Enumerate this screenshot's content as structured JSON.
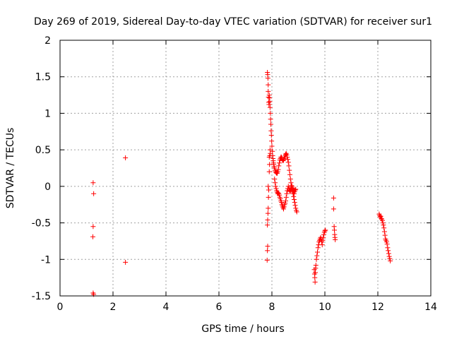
{
  "chart_data": {
    "type": "scatter",
    "title": "Day 269 of 2019, Sidereal Day-to-day VTEC variation (SDTVAR) for receiver sur1",
    "xlabel": "GPS time / hours",
    "ylabel": "SDTVAR / TECUs",
    "xlim": [
      0,
      14
    ],
    "ylim": [
      -1.5,
      2
    ],
    "xticks": [
      "0",
      "2",
      "4",
      "6",
      "8",
      "10",
      "12",
      "14"
    ],
    "yticks": [
      "-1.5",
      "-1",
      "-0.5",
      "0",
      "0.5",
      "1",
      "1.5",
      "2"
    ],
    "grid": true,
    "marker": "+",
    "color": "#ff0000",
    "series": [
      {
        "name": "sur1",
        "points": [
          [
            1.25,
            0.05
          ],
          [
            1.27,
            -0.1
          ],
          [
            1.25,
            -0.55
          ],
          [
            1.24,
            -0.69
          ],
          [
            1.25,
            -1.46
          ],
          [
            1.27,
            -1.48
          ],
          [
            2.47,
            0.39
          ],
          [
            2.47,
            -1.04
          ],
          [
            7.82,
            -1.01
          ],
          [
            7.83,
            -0.88
          ],
          [
            7.84,
            -0.82
          ],
          [
            7.83,
            -0.53
          ],
          [
            7.84,
            -0.46
          ],
          [
            7.85,
            -0.37
          ],
          [
            7.86,
            -0.3
          ],
          [
            7.87,
            -0.15
          ],
          [
            7.88,
            -0.05
          ],
          [
            7.86,
            0.0
          ],
          [
            7.83,
            1.56
          ],
          [
            7.84,
            1.53
          ],
          [
            7.85,
            1.48
          ],
          [
            7.86,
            1.39
          ],
          [
            7.86,
            1.3
          ],
          [
            7.87,
            1.22
          ],
          [
            7.88,
            1.15
          ],
          [
            7.89,
            1.12
          ],
          [
            7.9,
            1.25
          ],
          [
            7.91,
            1.21
          ],
          [
            7.92,
            1.16
          ],
          [
            7.93,
            1.08
          ],
          [
            7.94,
            1.0
          ],
          [
            7.95,
            0.92
          ],
          [
            7.96,
            0.85
          ],
          [
            7.97,
            0.76
          ],
          [
            7.98,
            0.7
          ],
          [
            7.9,
            0.4
          ],
          [
            7.91,
            0.3
          ],
          [
            7.9,
            0.2
          ],
          [
            7.92,
            0.42
          ],
          [
            7.93,
            0.5
          ],
          [
            7.94,
            0.45
          ],
          [
            7.99,
            0.62
          ],
          [
            8.0,
            0.55
          ],
          [
            8.02,
            0.48
          ],
          [
            8.03,
            0.42
          ],
          [
            8.04,
            0.38
          ],
          [
            8.05,
            0.35
          ],
          [
            8.06,
            0.32
          ],
          [
            8.07,
            0.3
          ],
          [
            8.08,
            0.27
          ],
          [
            8.1,
            0.25
          ],
          [
            8.12,
            0.22
          ],
          [
            8.14,
            0.2
          ],
          [
            8.16,
            0.19
          ],
          [
            8.18,
            0.18
          ],
          [
            8.2,
            0.18
          ],
          [
            8.22,
            0.2
          ],
          [
            8.24,
            0.23
          ],
          [
            8.1,
            0.1
          ],
          [
            8.12,
            0.05
          ],
          [
            8.14,
            0.0
          ],
          [
            8.16,
            -0.03
          ],
          [
            8.18,
            -0.06
          ],
          [
            8.2,
            -0.08
          ],
          [
            8.22,
            -0.1
          ],
          [
            8.24,
            -0.09
          ],
          [
            8.26,
            0.28
          ],
          [
            8.28,
            0.32
          ],
          [
            8.3,
            0.36
          ],
          [
            8.32,
            0.38
          ],
          [
            8.34,
            0.4
          ],
          [
            8.36,
            0.4
          ],
          [
            8.38,
            0.38
          ],
          [
            8.4,
            0.36
          ],
          [
            8.42,
            0.35
          ],
          [
            8.26,
            -0.1
          ],
          [
            8.28,
            -0.12
          ],
          [
            8.3,
            -0.15
          ],
          [
            8.32,
            -0.17
          ],
          [
            8.34,
            -0.2
          ],
          [
            8.36,
            -0.22
          ],
          [
            8.38,
            -0.25
          ],
          [
            8.4,
            -0.27
          ],
          [
            8.42,
            -0.29
          ],
          [
            8.44,
            -0.31
          ],
          [
            8.44,
            0.36
          ],
          [
            8.46,
            0.38
          ],
          [
            8.48,
            0.4
          ],
          [
            8.5,
            0.42
          ],
          [
            8.52,
            0.44
          ],
          [
            8.54,
            0.45
          ],
          [
            8.56,
            0.43
          ],
          [
            8.58,
            0.4
          ],
          [
            8.6,
            0.37
          ],
          [
            8.46,
            -0.28
          ],
          [
            8.48,
            -0.25
          ],
          [
            8.5,
            -0.23
          ],
          [
            8.52,
            -0.2
          ],
          [
            8.54,
            -0.15
          ],
          [
            8.56,
            -0.1
          ],
          [
            8.58,
            -0.06
          ],
          [
            8.6,
            -0.03
          ],
          [
            8.62,
            0.33
          ],
          [
            8.64,
            0.28
          ],
          [
            8.66,
            0.22
          ],
          [
            8.68,
            0.16
          ],
          [
            8.7,
            0.1
          ],
          [
            8.72,
            0.05
          ],
          [
            8.74,
            0.01
          ],
          [
            8.62,
            0.0
          ],
          [
            8.64,
            -0.03
          ],
          [
            8.66,
            -0.05
          ],
          [
            8.68,
            -0.07
          ],
          [
            8.7,
            -0.06
          ],
          [
            8.72,
            -0.04
          ],
          [
            8.74,
            -0.02
          ],
          [
            8.76,
            -0.02
          ],
          [
            8.78,
            -0.06
          ],
          [
            8.8,
            -0.1
          ],
          [
            8.82,
            -0.14
          ],
          [
            8.84,
            -0.18
          ],
          [
            8.86,
            -0.22
          ],
          [
            8.88,
            -0.26
          ],
          [
            8.9,
            -0.3
          ],
          [
            8.92,
            -0.33
          ],
          [
            8.94,
            -0.35
          ],
          [
            8.76,
            0.0
          ],
          [
            8.78,
            -0.03
          ],
          [
            8.8,
            -0.05
          ],
          [
            8.82,
            -0.08
          ],
          [
            8.84,
            -0.1
          ],
          [
            8.86,
            -0.07
          ],
          [
            8.88,
            -0.05
          ],
          [
            8.9,
            -0.04
          ],
          [
            9.6,
            -1.14
          ],
          [
            9.61,
            -1.2
          ],
          [
            9.62,
            -1.25
          ],
          [
            9.63,
            -1.31
          ],
          [
            9.64,
            -1.18
          ],
          [
            9.65,
            -1.12
          ],
          [
            9.66,
            -1.08
          ],
          [
            9.68,
            -1.0
          ],
          [
            9.7,
            -0.95
          ],
          [
            9.72,
            -0.9
          ],
          [
            9.74,
            -0.84
          ],
          [
            9.76,
            -0.8
          ],
          [
            9.78,
            -0.76
          ],
          [
            9.8,
            -0.74
          ],
          [
            9.82,
            -0.72
          ],
          [
            9.84,
            -0.7
          ],
          [
            9.86,
            -0.72
          ],
          [
            9.88,
            -0.76
          ],
          [
            9.9,
            -0.8
          ],
          [
            9.92,
            -0.74
          ],
          [
            9.94,
            -0.7
          ],
          [
            9.96,
            -0.66
          ],
          [
            9.98,
            -0.63
          ],
          [
            10.0,
            -0.61
          ],
          [
            10.02,
            -0.6
          ],
          [
            10.33,
            -0.16
          ],
          [
            10.33,
            -0.31
          ],
          [
            10.35,
            -0.55
          ],
          [
            10.36,
            -0.6
          ],
          [
            10.37,
            -0.66
          ],
          [
            10.38,
            -0.7
          ],
          [
            10.39,
            -0.73
          ],
          [
            12.05,
            -0.38
          ],
          [
            12.07,
            -0.4
          ],
          [
            12.09,
            -0.42
          ],
          [
            12.11,
            -0.41
          ],
          [
            12.13,
            -0.44
          ],
          [
            12.15,
            -0.45
          ],
          [
            12.17,
            -0.47
          ],
          [
            12.19,
            -0.5
          ],
          [
            12.21,
            -0.53
          ],
          [
            12.23,
            -0.57
          ],
          [
            12.25,
            -0.62
          ],
          [
            12.27,
            -0.67
          ],
          [
            12.29,
            -0.72
          ],
          [
            12.31,
            -0.74
          ],
          [
            12.33,
            -0.76
          ],
          [
            12.35,
            -0.79
          ],
          [
            12.37,
            -0.84
          ],
          [
            12.39,
            -0.88
          ],
          [
            12.41,
            -0.92
          ],
          [
            12.43,
            -0.96
          ],
          [
            12.45,
            -0.99
          ],
          [
            12.47,
            -1.02
          ]
        ]
      }
    ]
  }
}
